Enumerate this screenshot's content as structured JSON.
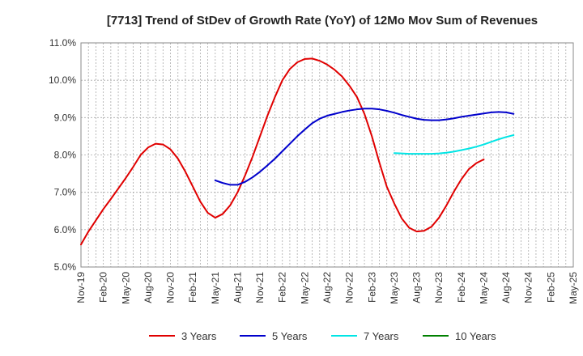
{
  "chart_data": {
    "type": "line",
    "title": "[7713]  Trend of StDev of Growth Rate (YoY) of 12Mo Mov Sum of Revenues",
    "xlabel": "",
    "ylabel": "",
    "ylim": [
      5.0,
      11.0
    ],
    "y_ticks": [
      5.0,
      6.0,
      7.0,
      8.0,
      9.0,
      10.0,
      11.0
    ],
    "y_tick_labels": [
      "5.0%",
      "6.0%",
      "7.0%",
      "8.0%",
      "9.0%",
      "10.0%",
      "11.0%"
    ],
    "x_tick_labels": [
      "Nov-19",
      "Feb-20",
      "May-20",
      "Aug-20",
      "Nov-20",
      "Feb-21",
      "May-21",
      "Aug-21",
      "Nov-21",
      "Feb-22",
      "May-22",
      "Aug-22",
      "Nov-22",
      "Feb-23",
      "May-23",
      "Aug-23",
      "Nov-23",
      "Feb-24",
      "May-24",
      "Aug-24",
      "Nov-24",
      "Feb-25",
      "May-25"
    ],
    "x_range_months": [
      0,
      66
    ],
    "grid": true,
    "legend_position": "bottom",
    "series": [
      {
        "name": "3 Years",
        "color": "#e00000",
        "points": [
          [
            0,
            5.6
          ],
          [
            1,
            5.95
          ],
          [
            2,
            6.25
          ],
          [
            3,
            6.55
          ],
          [
            4,
            6.82
          ],
          [
            5,
            7.1
          ],
          [
            6,
            7.38
          ],
          [
            7,
            7.68
          ],
          [
            8,
            8.0
          ],
          [
            9,
            8.2
          ],
          [
            10,
            8.3
          ],
          [
            11,
            8.28
          ],
          [
            12,
            8.15
          ],
          [
            13,
            7.9
          ],
          [
            14,
            7.55
          ],
          [
            15,
            7.15
          ],
          [
            16,
            6.75
          ],
          [
            17,
            6.45
          ],
          [
            18,
            6.32
          ],
          [
            19,
            6.42
          ],
          [
            20,
            6.65
          ],
          [
            21,
            7.0
          ],
          [
            22,
            7.45
          ],
          [
            23,
            7.95
          ],
          [
            24,
            8.5
          ],
          [
            25,
            9.05
          ],
          [
            26,
            9.55
          ],
          [
            27,
            10.0
          ],
          [
            28,
            10.3
          ],
          [
            29,
            10.48
          ],
          [
            30,
            10.57
          ],
          [
            31,
            10.58
          ],
          [
            32,
            10.52
          ],
          [
            33,
            10.42
          ],
          [
            34,
            10.28
          ],
          [
            35,
            10.1
          ],
          [
            36,
            9.85
          ],
          [
            37,
            9.55
          ],
          [
            38,
            9.1
          ],
          [
            39,
            8.5
          ],
          [
            40,
            7.8
          ],
          [
            41,
            7.15
          ],
          [
            42,
            6.7
          ],
          [
            43,
            6.3
          ],
          [
            44,
            6.05
          ],
          [
            45,
            5.95
          ],
          [
            46,
            5.97
          ],
          [
            47,
            6.08
          ],
          [
            48,
            6.32
          ],
          [
            49,
            6.65
          ],
          [
            50,
            7.02
          ],
          [
            51,
            7.35
          ],
          [
            52,
            7.62
          ],
          [
            53,
            7.78
          ],
          [
            54,
            7.88
          ]
        ]
      },
      {
        "name": "5 Years",
        "color": "#0000cc",
        "points": [
          [
            18,
            7.32
          ],
          [
            19,
            7.25
          ],
          [
            20,
            7.2
          ],
          [
            21,
            7.2
          ],
          [
            22,
            7.28
          ],
          [
            23,
            7.4
          ],
          [
            24,
            7.55
          ],
          [
            25,
            7.72
          ],
          [
            26,
            7.9
          ],
          [
            27,
            8.1
          ],
          [
            28,
            8.3
          ],
          [
            29,
            8.5
          ],
          [
            30,
            8.68
          ],
          [
            31,
            8.85
          ],
          [
            32,
            8.97
          ],
          [
            33,
            9.05
          ],
          [
            34,
            9.1
          ],
          [
            35,
            9.15
          ],
          [
            36,
            9.19
          ],
          [
            37,
            9.22
          ],
          [
            38,
            9.24
          ],
          [
            39,
            9.24
          ],
          [
            40,
            9.22
          ],
          [
            41,
            9.18
          ],
          [
            42,
            9.13
          ],
          [
            43,
            9.07
          ],
          [
            44,
            9.02
          ],
          [
            45,
            8.97
          ],
          [
            46,
            8.94
          ],
          [
            47,
            8.93
          ],
          [
            48,
            8.93
          ],
          [
            49,
            8.95
          ],
          [
            50,
            8.98
          ],
          [
            51,
            9.02
          ],
          [
            52,
            9.05
          ],
          [
            53,
            9.08
          ],
          [
            54,
            9.11
          ],
          [
            55,
            9.14
          ],
          [
            56,
            9.15
          ],
          [
            57,
            9.14
          ],
          [
            58,
            9.1
          ]
        ]
      },
      {
        "name": "7 Years",
        "color": "#00e5e5",
        "points": [
          [
            42,
            8.05
          ],
          [
            43,
            8.04
          ],
          [
            44,
            8.03
          ],
          [
            45,
            8.03
          ],
          [
            46,
            8.03
          ],
          [
            47,
            8.03
          ],
          [
            48,
            8.04
          ],
          [
            49,
            8.06
          ],
          [
            50,
            8.09
          ],
          [
            51,
            8.13
          ],
          [
            52,
            8.17
          ],
          [
            53,
            8.22
          ],
          [
            54,
            8.28
          ],
          [
            55,
            8.35
          ],
          [
            56,
            8.42
          ],
          [
            57,
            8.48
          ],
          [
            58,
            8.53
          ]
        ]
      },
      {
        "name": "10 Years",
        "color": "#008000",
        "points": []
      }
    ]
  }
}
